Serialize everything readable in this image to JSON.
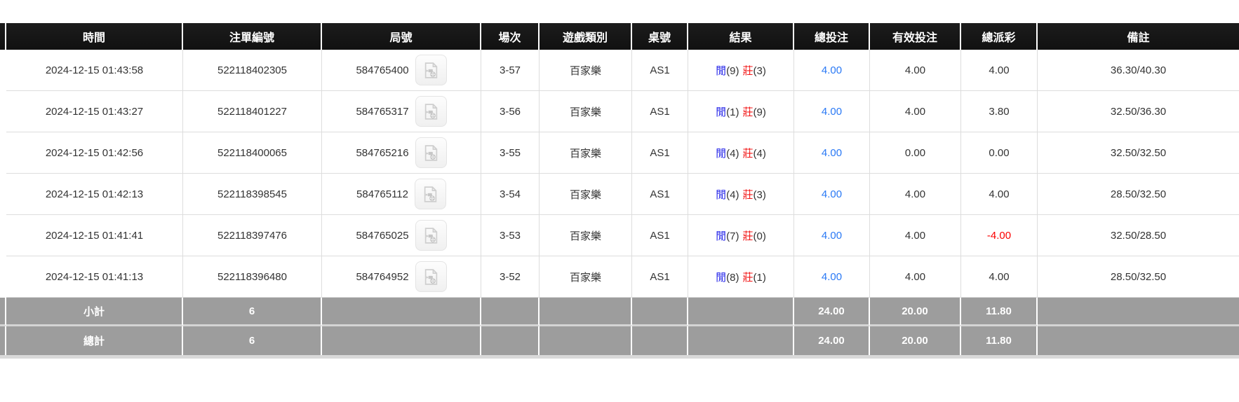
{
  "colors": {
    "header_bg": "#1c1c1c",
    "header_text": "#ffffff",
    "footer_bg": "#9d9d9d",
    "footer_text": "#ffffff",
    "body_text": "#333333",
    "row_border": "#dddddd",
    "player_blue": "#1f1fe8",
    "banker_red": "#f21515",
    "bet_link_blue": "#2a79f5",
    "negative_red": "#fb0000",
    "bottom_strip": "#d9d9d9"
  },
  "icons": {
    "round_video": "video-file-icon"
  },
  "table": {
    "columns": [
      {
        "key": "time",
        "label": "時間"
      },
      {
        "key": "bet_no",
        "label": "注單編號"
      },
      {
        "key": "round_no",
        "label": "局號"
      },
      {
        "key": "session",
        "label": "場次"
      },
      {
        "key": "game",
        "label": "遊戲類別"
      },
      {
        "key": "table_no",
        "label": "桌號"
      },
      {
        "key": "result",
        "label": "結果"
      },
      {
        "key": "total_bet",
        "label": "總投注"
      },
      {
        "key": "valid_bet",
        "label": "有效投注"
      },
      {
        "key": "payout",
        "label": "總派彩"
      },
      {
        "key": "remark",
        "label": "備註"
      }
    ],
    "rows": [
      {
        "time": "2024-12-15 01:43:58",
        "bet_no": "522118402305",
        "round_no": "584765400",
        "session": "3-57",
        "game": "百家樂",
        "table_no": "AS1",
        "result": {
          "player": "閒",
          "player_score": "(9)",
          "banker": "莊",
          "banker_score": "(3)"
        },
        "total_bet": "4.00",
        "valid_bet": "4.00",
        "payout": "4.00",
        "remark": "36.30/40.30"
      },
      {
        "time": "2024-12-15 01:43:27",
        "bet_no": "522118401227",
        "round_no": "584765317",
        "session": "3-56",
        "game": "百家樂",
        "table_no": "AS1",
        "result": {
          "player": "閒",
          "player_score": "(1)",
          "banker": "莊",
          "banker_score": "(9)"
        },
        "total_bet": "4.00",
        "valid_bet": "4.00",
        "payout": "3.80",
        "remark": "32.50/36.30"
      },
      {
        "time": "2024-12-15 01:42:56",
        "bet_no": "522118400065",
        "round_no": "584765216",
        "session": "3-55",
        "game": "百家樂",
        "table_no": "AS1",
        "result": {
          "player": "閒",
          "player_score": "(4)",
          "banker": "莊",
          "banker_score": "(4)"
        },
        "total_bet": "4.00",
        "valid_bet": "0.00",
        "payout": "0.00",
        "remark": "32.50/32.50"
      },
      {
        "time": "2024-12-15 01:42:13",
        "bet_no": "522118398545",
        "round_no": "584765112",
        "session": "3-54",
        "game": "百家樂",
        "table_no": "AS1",
        "result": {
          "player": "閒",
          "player_score": "(4)",
          "banker": "莊",
          "banker_score": "(3)"
        },
        "total_bet": "4.00",
        "valid_bet": "4.00",
        "payout": "4.00",
        "remark": "28.50/32.50"
      },
      {
        "time": "2024-12-15 01:41:41",
        "bet_no": "522118397476",
        "round_no": "584765025",
        "session": "3-53",
        "game": "百家樂",
        "table_no": "AS1",
        "result": {
          "player": "閒",
          "player_score": "(7)",
          "banker": "莊",
          "banker_score": "(0)"
        },
        "total_bet": "4.00",
        "valid_bet": "4.00",
        "payout": "-4.00",
        "remark": "32.50/28.50"
      },
      {
        "time": "2024-12-15 01:41:13",
        "bet_no": "522118396480",
        "round_no": "584764952",
        "session": "3-52",
        "game": "百家樂",
        "table_no": "AS1",
        "result": {
          "player": "閒",
          "player_score": "(8)",
          "banker": "莊",
          "banker_score": "(1)"
        },
        "total_bet": "4.00",
        "valid_bet": "4.00",
        "payout": "4.00",
        "remark": "28.50/32.50"
      }
    ],
    "footer_rows": [
      {
        "label": "小計",
        "count": "6",
        "total_bet": "24.00",
        "valid_bet": "20.00",
        "payout": "11.80",
        "remark": ""
      },
      {
        "label": "總計",
        "count": "6",
        "total_bet": "24.00",
        "valid_bet": "20.00",
        "payout": "11.80",
        "remark": ""
      }
    ]
  }
}
